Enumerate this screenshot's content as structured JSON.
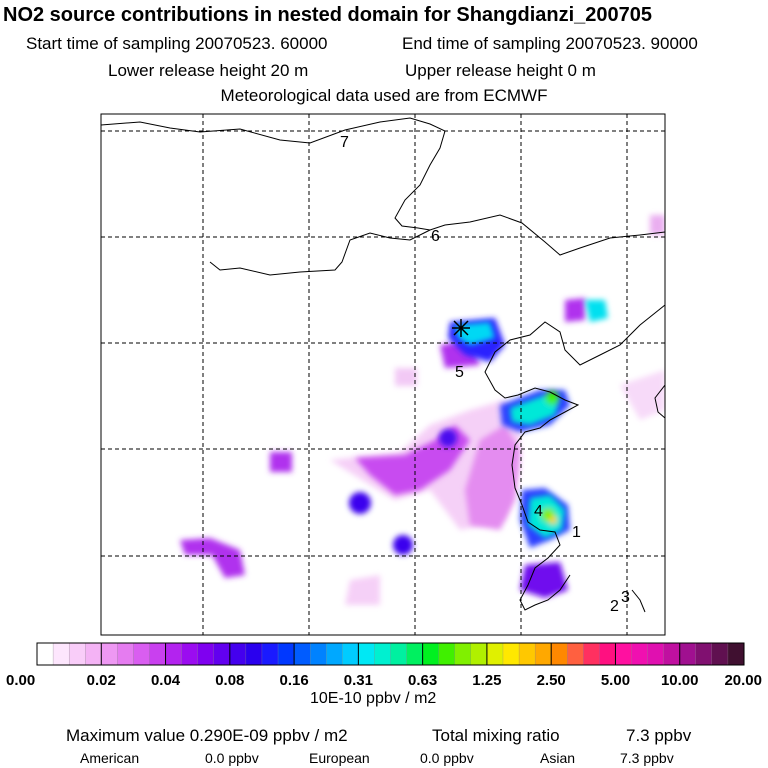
{
  "chart_data": {
    "type": "heatmap",
    "title": "NO2 source contributions in nested domain for Shangdianzi_200705",
    "header": {
      "start_label": "Start time of sampling 20070523. 60000",
      "end_label": "End time of sampling 20070523. 90000",
      "lower_label": "Lower release height   20 m",
      "upper_label": "Upper release height    0 m",
      "met_label": "Meteorological data used are from ECMWF"
    },
    "day_markers": [
      "7",
      "6",
      "5",
      "4",
      "1",
      "2",
      "3"
    ],
    "colorbar": {
      "tick_labels": [
        "0.00",
        "0.02",
        "0.04",
        "0.08",
        "0.16",
        "0.31",
        "0.63",
        "1.25",
        "2.50",
        "5.00",
        "10.00",
        "20.00"
      ],
      "unit": "10E-10 ppbv / m2",
      "colors": [
        "#ffffff",
        "#fde6fd",
        "#f9cdf9",
        "#f4b3f5",
        "#ee98f3",
        "#e57cf0",
        "#d95ef0",
        "#c940ef",
        "#b323ef",
        "#9b0cf0",
        "#7f00f0",
        "#6200ef",
        "#4400ee",
        "#2a00ee",
        "#1a1aff",
        "#0038ff",
        "#005cff",
        "#0082ff",
        "#00a8ff",
        "#00ccff",
        "#00e8f4",
        "#00f0d0",
        "#00f0a0",
        "#00f060",
        "#00f020",
        "#40f000",
        "#80f000",
        "#b0f000",
        "#e0f000",
        "#ffe800",
        "#ffc800",
        "#ffa800",
        "#ff8800",
        "#ff6040",
        "#ff3060",
        "#ff1080",
        "#ff10a0",
        "#f010b0",
        "#e010b0",
        "#c010a0",
        "#a01090",
        "#801070",
        "#601050",
        "#401030"
      ]
    },
    "hotspots": [
      {
        "x": 0.62,
        "y": 0.22,
        "v": 0.2
      },
      {
        "x": 0.63,
        "y": 0.27,
        "v": 0.1
      },
      {
        "x": 0.83,
        "y": 0.24,
        "v": 0.15
      },
      {
        "x": 0.77,
        "y": 0.34,
        "v": 0.8
      },
      {
        "x": 0.75,
        "y": 0.57,
        "v": 2.5
      },
      {
        "x": 0.72,
        "y": 0.58,
        "v": 0.15
      },
      {
        "x": 0.54,
        "y": 0.31,
        "v": 0.03
      },
      {
        "x": 0.48,
        "y": 0.35,
        "v": 0.06
      },
      {
        "x": 0.37,
        "y": 0.44,
        "v": 0.04
      },
      {
        "x": 0.22,
        "y": 0.6,
        "v": 0.06
      },
      {
        "x": 0.17,
        "y": 0.45,
        "v": 0.05
      },
      {
        "x": 0.08,
        "y": 0.56,
        "v": 0.03
      },
      {
        "x": 0.25,
        "y": 0.38,
        "v": 0.02
      },
      {
        "x": 0.45,
        "y": 0.47,
        "v": 0.02
      }
    ]
  },
  "footer": {
    "max_label": "Maximum value  0.290E-09 ppbv / m2",
    "total_label": "Total mixing ratio",
    "total_value": "7.3 ppbv",
    "regions": [
      {
        "name": "American",
        "value": "0.0 ppbv"
      },
      {
        "name": "European",
        "value": "0.0 ppbv"
      },
      {
        "name": "Asian",
        "value": "7.3 ppbv"
      }
    ]
  }
}
